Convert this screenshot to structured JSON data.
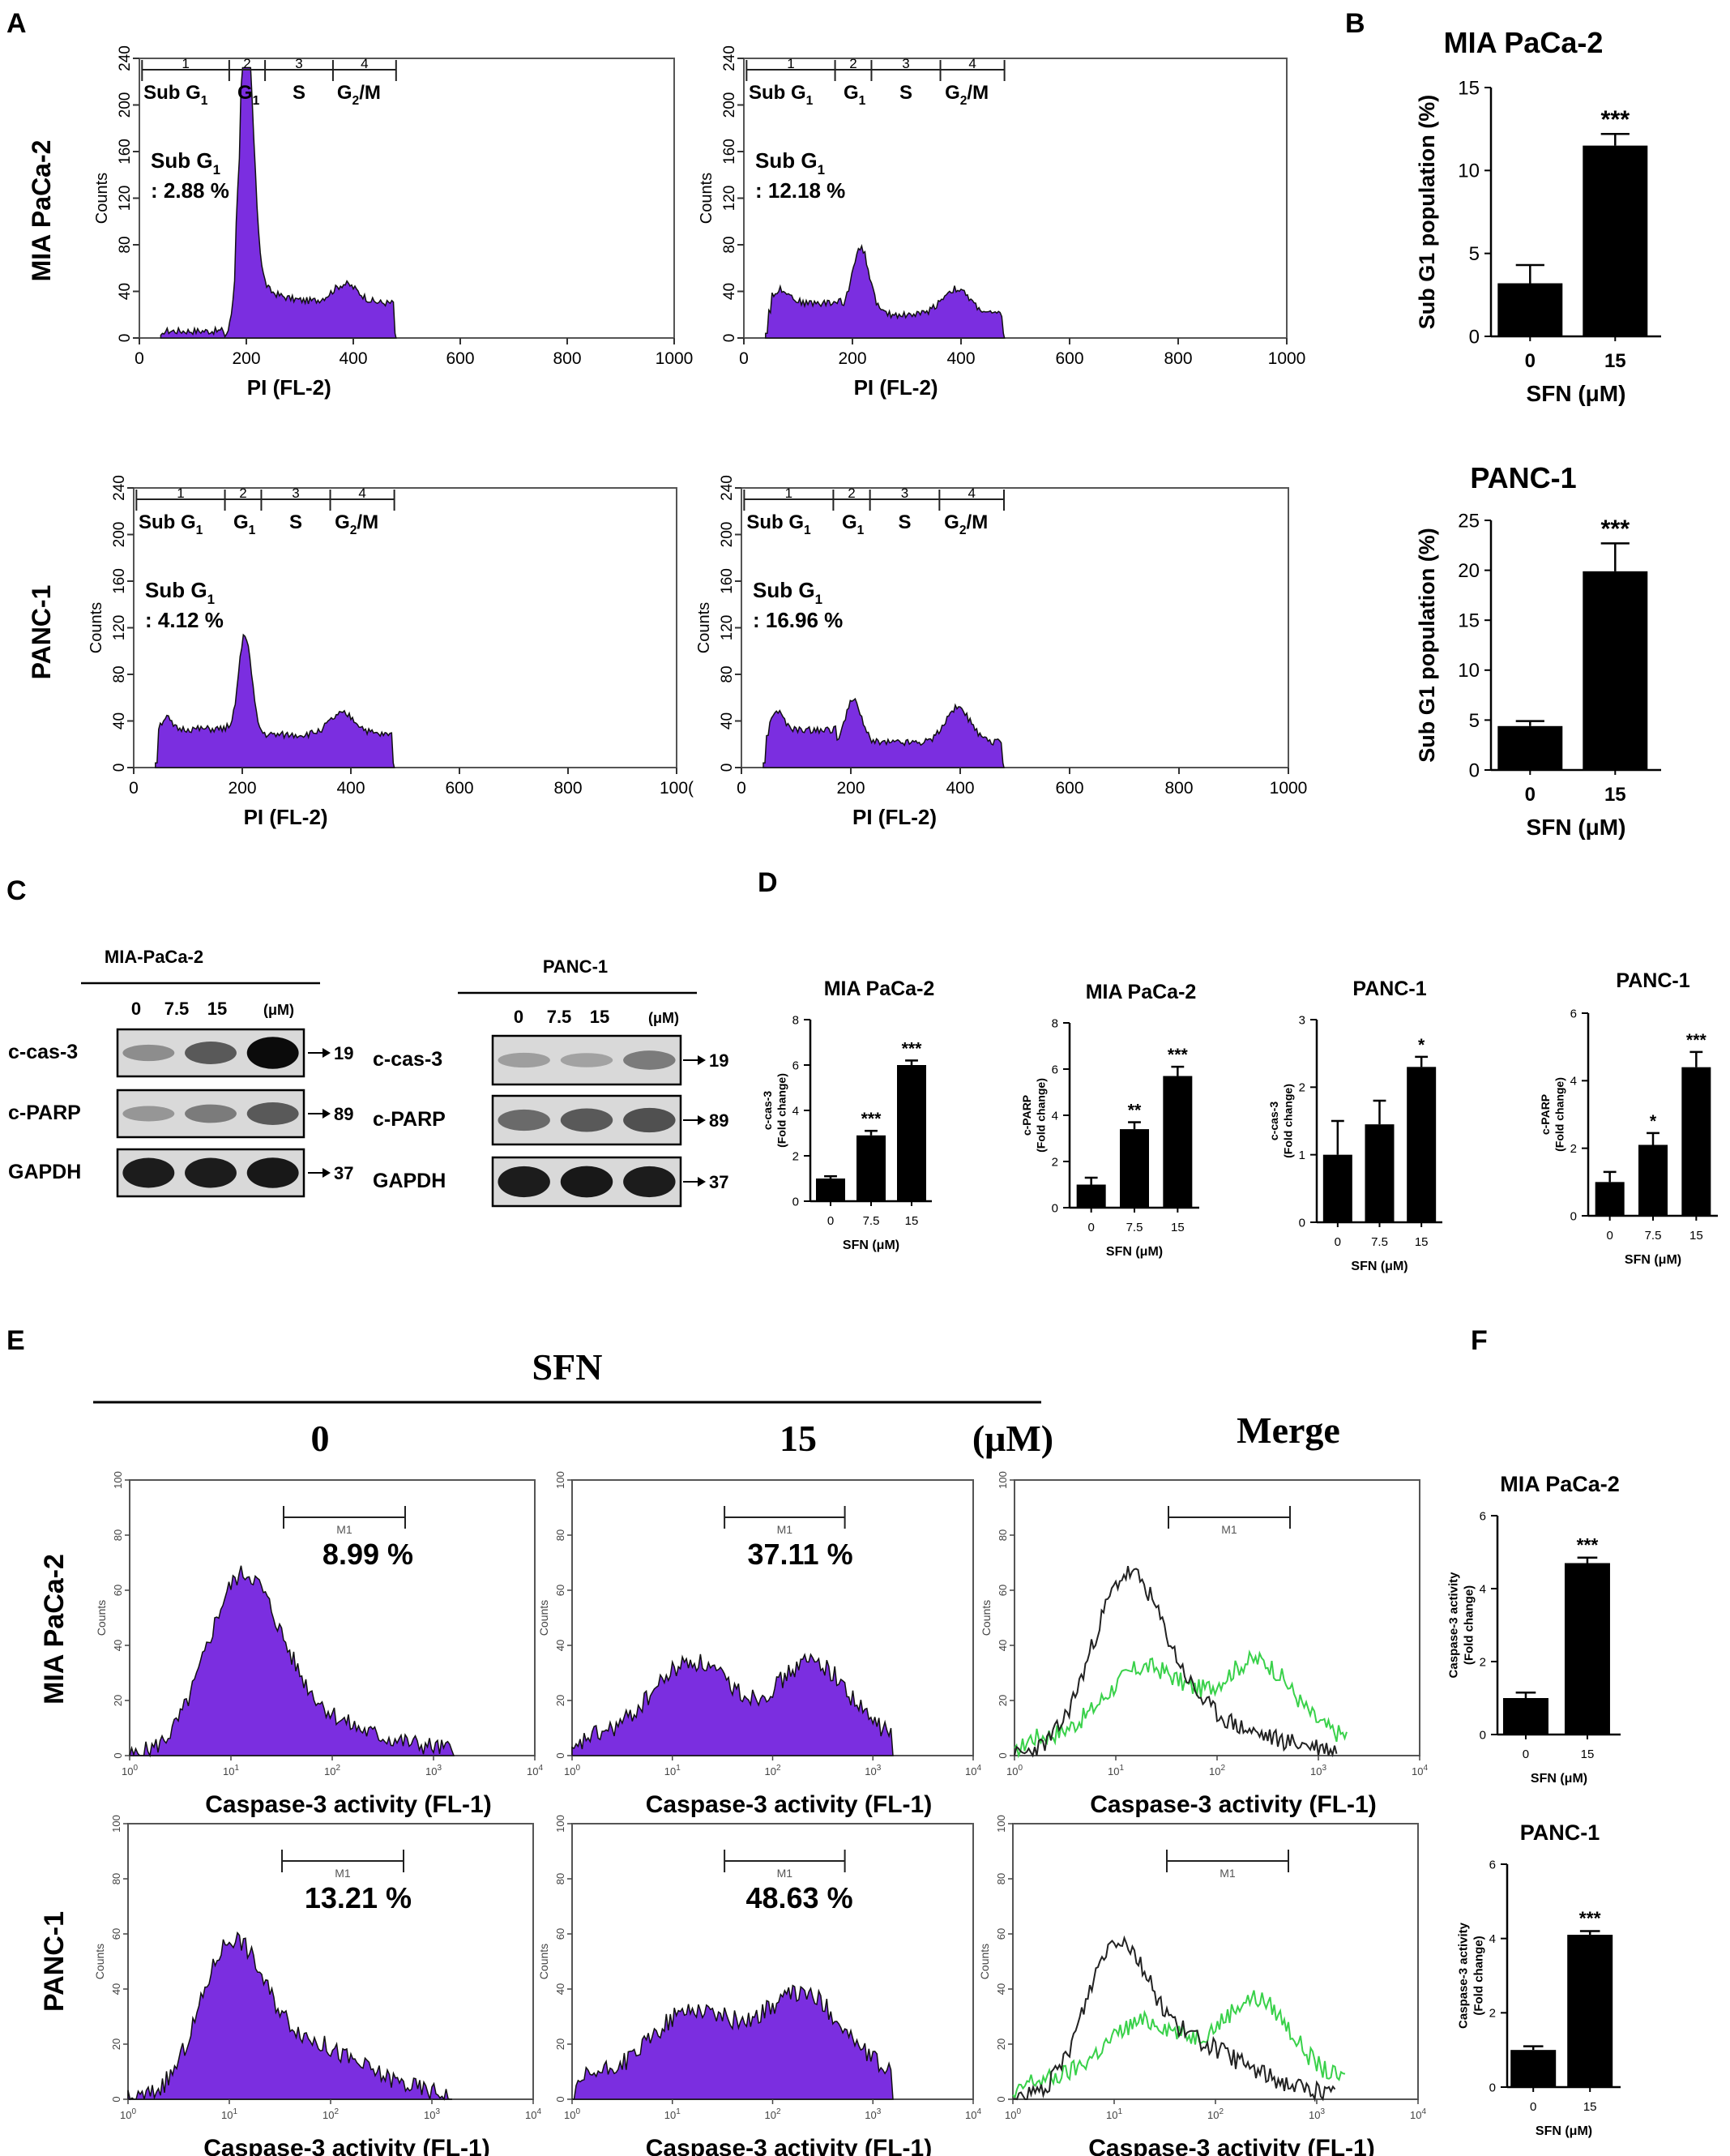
{
  "colors": {
    "purple": "#7b2ee0",
    "green": "#39d14a",
    "black": "#000000",
    "blot_bg": "#d9d9d9"
  },
  "panel_letters": {
    "a": "A",
    "b": "B",
    "c": "C",
    "d": "D",
    "e": "E",
    "f": "F"
  },
  "common": {
    "counts": "Counts",
    "sub_g1_label": "Sub G",
    "sub_g1_sub": "1",
    "colon_prefix": ": ",
    "gate_nums": [
      "1",
      "2",
      "3",
      "4"
    ],
    "gate_labels": [
      "Sub G",
      "G",
      "S",
      "G"
    ],
    "g2m_suffix": "/M",
    "sub1": "1",
    "sub2": "2",
    "pi_xlabel": "PI (FL-2)",
    "casp_xlabel": "Caspase-3 activity (FL-1)",
    "m1": "M1",
    "sfn_um": "SFN  (μM)"
  },
  "row_labels": {
    "mia": "MIA PaCa-2",
    "panc": "PANC-1"
  },
  "panel_a": {
    "histograms": [
      {
        "cell": "MIA PaCa-2",
        "sfn": "0",
        "sub_g1": "2.88 %",
        "xmax_label": "1000"
      },
      {
        "cell": "MIA PaCa-2",
        "sfn": "15",
        "sub_g1": "12.18 %",
        "xmax_label": "1000"
      },
      {
        "cell": "PANC-1",
        "sfn": "0",
        "sub_g1": "4.12 %",
        "xmax_label": "100("
      },
      {
        "cell": "PANC-1",
        "sfn": "15",
        "sub_g1": "16.96 %",
        "xmax_label": "1000"
      }
    ],
    "x_ticks": [
      "0",
      "200",
      "400",
      "600",
      "800"
    ],
    "y_ticks": [
      "0",
      "40",
      "80",
      "120",
      "160",
      "200",
      "240"
    ]
  },
  "chart_data": [
    {
      "panel": "B",
      "type": "bar",
      "title": "MIA PaCa-2",
      "ylabel": "Sub  G1 population  (%)",
      "xlabel": "SFN  (μM)",
      "categories": [
        "0",
        "15"
      ],
      "values": [
        3.2,
        11.5
      ],
      "errors": [
        1.1,
        0.7
      ],
      "sig": [
        "",
        "***"
      ],
      "ylim": [
        0,
        15
      ],
      "yticks": [
        0,
        5,
        10,
        15
      ]
    },
    {
      "panel": "B",
      "type": "bar",
      "title": "PANC-1",
      "ylabel": "Sub  G1 population  (%)",
      "xlabel": "SFN  (μM)",
      "categories": [
        "0",
        "15"
      ],
      "values": [
        4.4,
        19.9
      ],
      "errors": [
        0.5,
        2.8
      ],
      "sig": [
        "",
        "***"
      ],
      "ylim": [
        0,
        25
      ],
      "yticks": [
        0,
        5,
        10,
        15,
        20,
        25
      ]
    },
    {
      "panel": "D",
      "type": "bar",
      "title": "MIA PaCa-2",
      "ylabel": "c-cas-3",
      "ylabel2": "(Fold change)",
      "xlabel": "SFN  (μM)",
      "categories": [
        "0",
        "7.5",
        "15"
      ],
      "values": [
        1.0,
        2.9,
        6.0
      ],
      "errors": [
        0.1,
        0.2,
        0.2
      ],
      "sig": [
        "",
        "***",
        "***"
      ],
      "ylim": [
        0,
        8
      ],
      "yticks": [
        0,
        2,
        4,
        6,
        8
      ]
    },
    {
      "panel": "D",
      "type": "bar",
      "title": "MIA PaCa-2",
      "ylabel": "c-PARP",
      "ylabel2": "(Fold change)",
      "xlabel": "SFN  (μM)",
      "categories": [
        "0",
        "7.5",
        "15"
      ],
      "values": [
        1.0,
        3.4,
        5.7
      ],
      "errors": [
        0.3,
        0.3,
        0.4
      ],
      "sig": [
        "",
        "**",
        "***"
      ],
      "ylim": [
        0,
        8
      ],
      "yticks": [
        0,
        2,
        4,
        6,
        8
      ]
    },
    {
      "panel": "D",
      "type": "bar",
      "title": "PANC-1",
      "ylabel": "c-cas-3",
      "ylabel2": "(Fold change)",
      "xlabel": "SFN  (μM)",
      "categories": [
        "0",
        "7.5",
        "15"
      ],
      "values": [
        1.0,
        1.45,
        2.3
      ],
      "errors": [
        0.5,
        0.35,
        0.15
      ],
      "sig": [
        "",
        "",
        "*"
      ],
      "ylim": [
        0,
        3
      ],
      "yticks": [
        0,
        1,
        2,
        3
      ]
    },
    {
      "panel": "D",
      "type": "bar",
      "title": "PANC-1",
      "ylabel": "c-PARP",
      "ylabel2": "(Fold change)",
      "xlabel": "SFN  (μM)",
      "categories": [
        "0",
        "7.5",
        "15"
      ],
      "values": [
        1.0,
        2.1,
        4.4
      ],
      "errors": [
        0.3,
        0.35,
        0.45
      ],
      "sig": [
        "",
        "*",
        "***"
      ],
      "ylim": [
        0,
        6
      ],
      "yticks": [
        0,
        2,
        4,
        6
      ]
    },
    {
      "panel": "F",
      "type": "bar",
      "title": "MIA PaCa-2",
      "ylabel": "Caspase-3 activity",
      "ylabel2": "(Fold change)",
      "xlabel": "SFN  (μM)",
      "categories": [
        "0",
        "15"
      ],
      "values": [
        1.0,
        4.7
      ],
      "errors": [
        0.15,
        0.15
      ],
      "sig": [
        "",
        "***"
      ],
      "ylim": [
        0,
        6
      ],
      "yticks": [
        0,
        2,
        4,
        6
      ]
    },
    {
      "panel": "F",
      "type": "bar",
      "title": "PANC-1",
      "ylabel": "Caspase-3 activity",
      "ylabel2": "(Fold change)",
      "xlabel": "SFN  (μM)",
      "categories": [
        "0",
        "15"
      ],
      "values": [
        1.0,
        4.1
      ],
      "errors": [
        0.1,
        0.1
      ],
      "sig": [
        "",
        "***"
      ],
      "ylim": [
        0,
        6
      ],
      "yticks": [
        0,
        2,
        4,
        6
      ]
    }
  ],
  "panel_c": {
    "blots": [
      {
        "title": "MIA-PaCa-2",
        "doses": [
          "0",
          "7.5",
          "15"
        ],
        "unit": "(μM)",
        "rows": [
          {
            "name": "c-cas-3",
            "kda": "19"
          },
          {
            "name": "c-PARP",
            "kda": "89"
          },
          {
            "name": "GAPDH",
            "kda": "37"
          }
        ]
      },
      {
        "title": "PANC-1",
        "doses": [
          "0",
          "7.5",
          "15"
        ],
        "unit": "(μM)",
        "rows": [
          {
            "name": "c-cas-3",
            "kda": "19"
          },
          {
            "name": "c-PARP",
            "kda": "89"
          },
          {
            "name": "GAPDH",
            "kda": "37"
          }
        ]
      }
    ]
  },
  "panel_e": {
    "treatment": "SFN",
    "conc_0": "0",
    "conc_15": "15",
    "unit": "(μM)",
    "merge": "Merge",
    "percents": {
      "mia_0": "8.99 %",
      "mia_15": "37.11 %",
      "panc_0": "13.21 %",
      "panc_15": "48.63 %"
    },
    "y_ticks": [
      "0",
      "20",
      "40",
      "60",
      "80",
      "100"
    ],
    "x_ticks_base": "10",
    "x_ticks_exp": [
      "0",
      "1",
      "2",
      "3",
      "4"
    ]
  }
}
